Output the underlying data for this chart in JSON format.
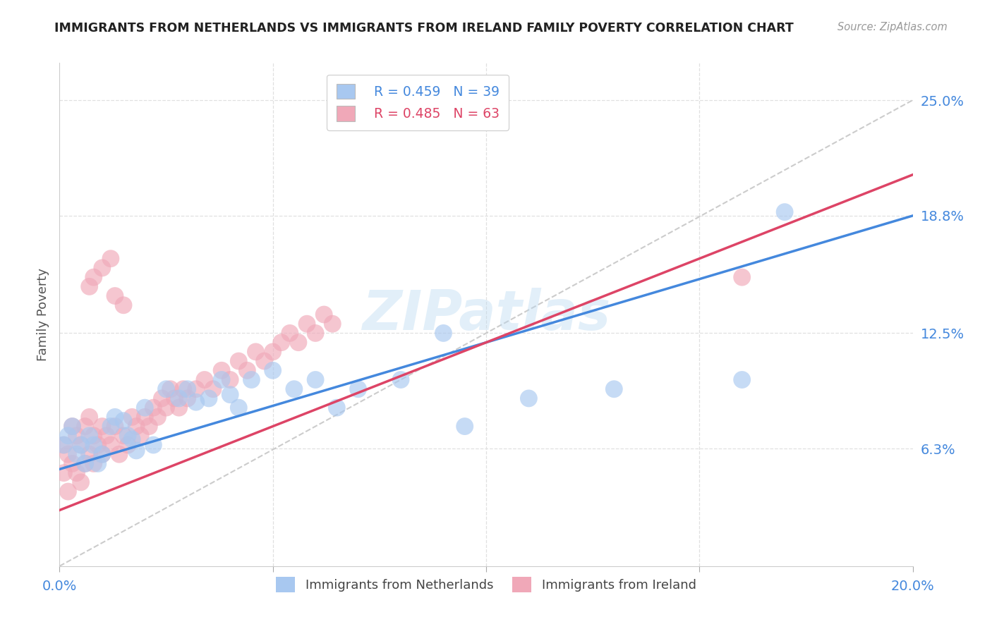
{
  "title": "IMMIGRANTS FROM NETHERLANDS VS IMMIGRANTS FROM IRELAND FAMILY POVERTY CORRELATION CHART",
  "source": "Source: ZipAtlas.com",
  "ylabel": "Family Poverty",
  "ytick_labels": [
    "6.3%",
    "12.5%",
    "18.8%",
    "25.0%"
  ],
  "ytick_values": [
    0.063,
    0.125,
    0.188,
    0.25
  ],
  "xmin": 0.0,
  "xmax": 0.2,
  "ymin": 0.0,
  "ymax": 0.27,
  "legend_r_netherlands": "R = 0.459",
  "legend_n_netherlands": "N = 39",
  "legend_r_ireland": "R = 0.485",
  "legend_n_ireland": "N = 63",
  "color_netherlands": "#a8c8f0",
  "color_ireland": "#f0a8b8",
  "color_netherlands_line": "#4488dd",
  "color_ireland_line": "#dd4466",
  "color_diagonal": "#cccccc",
  "color_text_blue": "#4488dd",
  "color_text_pink": "#dd4466",
  "nl_intercept": 0.052,
  "nl_slope": 0.68,
  "ir_intercept": 0.03,
  "ir_slope": 0.9,
  "netherlands_x": [
    0.001,
    0.002,
    0.003,
    0.004,
    0.005,
    0.006,
    0.007,
    0.008,
    0.009,
    0.01,
    0.012,
    0.013,
    0.015,
    0.016,
    0.017,
    0.018,
    0.02,
    0.022,
    0.025,
    0.028,
    0.03,
    0.032,
    0.035,
    0.038,
    0.04,
    0.042,
    0.045,
    0.05,
    0.055,
    0.06,
    0.065,
    0.07,
    0.08,
    0.09,
    0.095,
    0.11,
    0.13,
    0.16,
    0.17
  ],
  "netherlands_y": [
    0.065,
    0.07,
    0.075,
    0.06,
    0.065,
    0.055,
    0.07,
    0.065,
    0.055,
    0.06,
    0.075,
    0.08,
    0.078,
    0.07,
    0.068,
    0.062,
    0.085,
    0.065,
    0.095,
    0.09,
    0.095,
    0.088,
    0.09,
    0.1,
    0.092,
    0.085,
    0.1,
    0.105,
    0.095,
    0.1,
    0.085,
    0.095,
    0.1,
    0.125,
    0.075,
    0.09,
    0.095,
    0.1,
    0.19
  ],
  "ireland_x": [
    0.001,
    0.001,
    0.002,
    0.002,
    0.003,
    0.003,
    0.004,
    0.004,
    0.005,
    0.005,
    0.006,
    0.006,
    0.007,
    0.007,
    0.008,
    0.008,
    0.009,
    0.01,
    0.01,
    0.011,
    0.012,
    0.013,
    0.014,
    0.015,
    0.016,
    0.017,
    0.018,
    0.019,
    0.02,
    0.021,
    0.022,
    0.023,
    0.024,
    0.025,
    0.026,
    0.027,
    0.028,
    0.029,
    0.03,
    0.032,
    0.034,
    0.036,
    0.038,
    0.04,
    0.042,
    0.044,
    0.046,
    0.048,
    0.05,
    0.052,
    0.054,
    0.056,
    0.058,
    0.06,
    0.062,
    0.064,
    0.007,
    0.008,
    0.01,
    0.012,
    0.013,
    0.015,
    0.16
  ],
  "ireland_y": [
    0.05,
    0.065,
    0.04,
    0.06,
    0.055,
    0.075,
    0.05,
    0.07,
    0.045,
    0.065,
    0.055,
    0.075,
    0.06,
    0.08,
    0.055,
    0.07,
    0.065,
    0.06,
    0.075,
    0.07,
    0.065,
    0.075,
    0.06,
    0.07,
    0.065,
    0.08,
    0.075,
    0.07,
    0.08,
    0.075,
    0.085,
    0.08,
    0.09,
    0.085,
    0.095,
    0.09,
    0.085,
    0.095,
    0.09,
    0.095,
    0.1,
    0.095,
    0.105,
    0.1,
    0.11,
    0.105,
    0.115,
    0.11,
    0.115,
    0.12,
    0.125,
    0.12,
    0.13,
    0.125,
    0.135,
    0.13,
    0.15,
    0.155,
    0.16,
    0.165,
    0.145,
    0.14,
    0.155
  ],
  "watermark": "ZIPatlas",
  "background_color": "#ffffff",
  "grid_color": "#e0e0e0"
}
